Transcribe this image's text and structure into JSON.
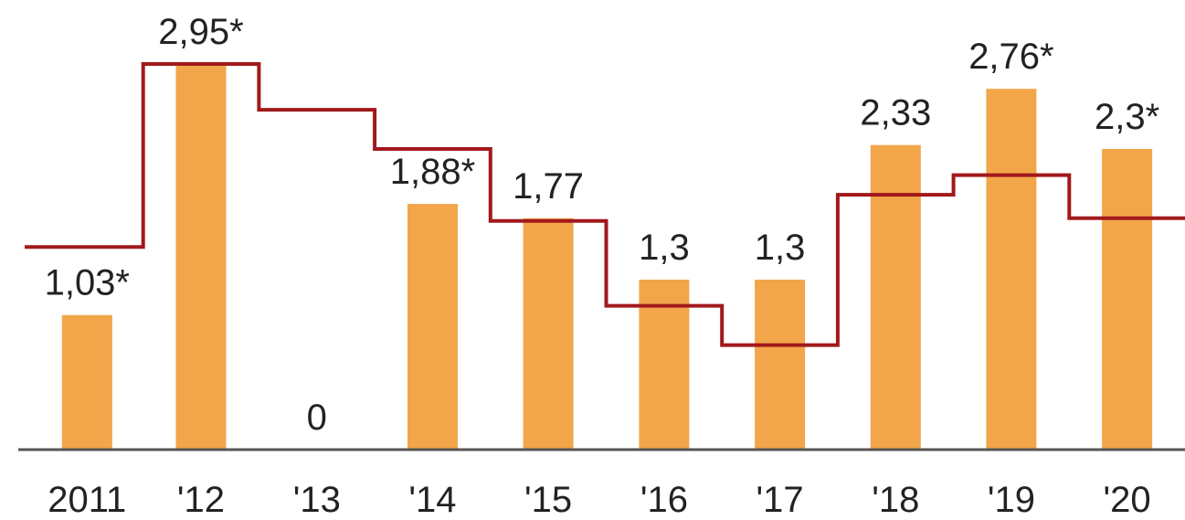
{
  "chart_data": {
    "type": "bar",
    "categories": [
      "2011",
      "'12",
      "'13",
      "'14",
      "'15",
      "'16",
      "'17",
      "'18",
      "'19",
      "'20"
    ],
    "series": [
      {
        "values": [
          1.03,
          2.95,
          0,
          1.88,
          1.77,
          1.3,
          1.3,
          2.33,
          2.76,
          2.3
        ]
      },
      {
        "type": "step",
        "values": [
          1.55,
          2.95,
          2.6,
          2.3,
          1.75,
          1.1,
          0.8,
          1.95,
          2.1,
          1.77
        ]
      }
    ],
    "value_labels": [
      "1,03*",
      "2,95*",
      "0",
      "1,88*",
      "1,77",
      "1,3",
      "1,3",
      "2,33",
      "2,76*",
      "2,3*"
    ],
    "title": "",
    "xlabel": "",
    "ylabel": "",
    "ylim": [
      0,
      3.1
    ],
    "grid": false,
    "colors": {
      "bar": "#F2A649",
      "line": "#A1191C",
      "axis": "#555555"
    }
  }
}
